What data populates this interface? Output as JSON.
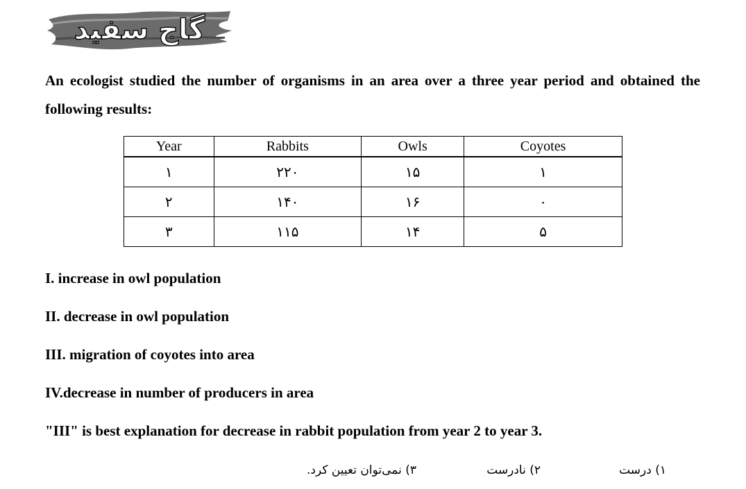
{
  "logo": {
    "text": "گاج سفید"
  },
  "question": {
    "text": "An ecologist studied the number of organisms in an area over a three year period and obtained the following results:"
  },
  "table": {
    "headers": [
      "Year",
      "Rabbits",
      "Owls",
      "Coyotes"
    ],
    "rows": [
      [
        "۱",
        "۲۲۰",
        "۱۵",
        "۱"
      ],
      [
        "۲",
        "۱۴۰",
        "۱۶",
        "۰"
      ],
      [
        "۳",
        "۱۱۵",
        "۱۴",
        "۵"
      ]
    ]
  },
  "statements": [
    "I. increase in owl population",
    "II. decrease in owl population",
    "III. migration of coyotes into area",
    "IV.decrease in number of producers in area",
    "\"III\" is best explanation for decrease in rabbit population from year 2 to year 3."
  ],
  "options": [
    "۱) درست",
    "۲) نادرست",
    "۳) نمی‌توان تعیین کرد."
  ]
}
